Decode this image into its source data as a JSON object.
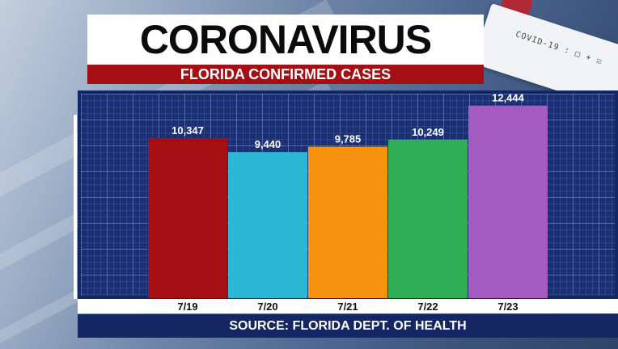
{
  "header": {
    "title": "CORONAVIRUS",
    "subtitle": "FLORIDA CONFIRMED CASES"
  },
  "background": {
    "test_card_text": "COVID-19 : □ + ☑"
  },
  "source": "SOURCE: FLORIDA DEPT. OF HEALTH",
  "chart_data": {
    "type": "bar",
    "categories": [
      "7/19",
      "7/20",
      "7/21",
      "7/22",
      "7/23"
    ],
    "values": [
      10347,
      9440,
      9785,
      10249,
      12444
    ],
    "value_labels": [
      "10,347",
      "9,440",
      "9,785",
      "10,249",
      "12,444"
    ],
    "colors": [
      "#a50e12",
      "#2bb7d6",
      "#f7920f",
      "#2fae55",
      "#a35bbf"
    ],
    "ylim": [
      0,
      12900
    ],
    "grid": true,
    "legend": "none"
  },
  "colors": {
    "panel": "#142663",
    "header_red": "#a50e12",
    "header_white": "#ffffff"
  }
}
